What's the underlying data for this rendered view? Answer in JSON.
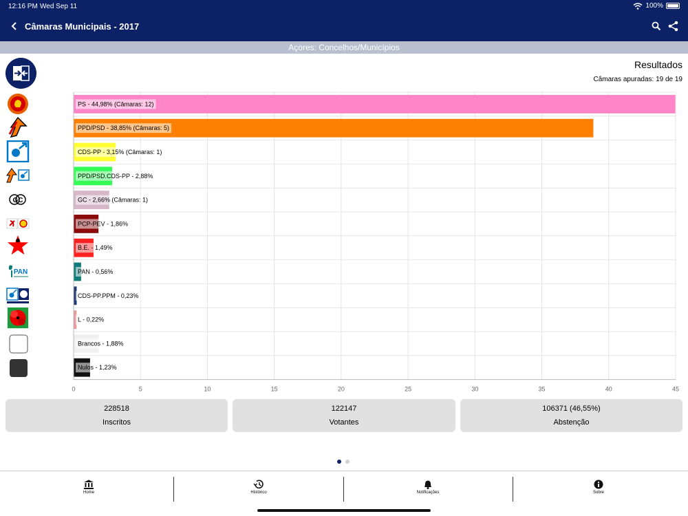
{
  "status_bar": {
    "time": "12:16 PM",
    "date": "Wed Sep 11",
    "battery": "100%"
  },
  "header": {
    "title": "Câmaras Municipais - 2017",
    "back_icon": "chevron-left-icon",
    "search_icon": "search-icon",
    "share_icon": "share-icon"
  },
  "subtitle": "Açores: Concelhos/Municípios",
  "results": {
    "title": "Resultados",
    "count": "Câmaras apuradas: 19 de 19"
  },
  "colors": {
    "brand": "#0d2266",
    "subtitle_bar": "#b9bfcf",
    "card": "#e0e0e0"
  },
  "logos": [
    {
      "name": "ps-logo"
    },
    {
      "name": "ppd-psd-logo"
    },
    {
      "name": "cds-pp-logo"
    },
    {
      "name": "ppd-psd-cds-pp-logo"
    },
    {
      "name": "gc-logo",
      "text": "GC"
    },
    {
      "name": "pcp-pev-logo"
    },
    {
      "name": "be-logo"
    },
    {
      "name": "pan-logo",
      "text": "PAN"
    },
    {
      "name": "cds-pp-ppm-logo"
    },
    {
      "name": "livre-logo"
    },
    {
      "name": "brancos-logo"
    },
    {
      "name": "nulos-logo"
    }
  ],
  "chart_data": {
    "type": "bar",
    "orientation": "horizontal",
    "categories": [
      "PS",
      "PPD/PSD",
      "CDS-PP",
      "PPD/PSD.CDS-PP",
      "GC",
      "PCP-PEV",
      "B.E.",
      "PAN",
      "CDS-PP.PPM",
      "L",
      "Brancos",
      "Nulos"
    ],
    "values": [
      44.98,
      38.85,
      3.15,
      2.88,
      2.66,
      1.86,
      1.49,
      0.56,
      0.23,
      0.22,
      1.88,
      1.23
    ],
    "labels": [
      "PS - 44,98% (Câmaras: 12)",
      "PPD/PSD - 38,85% (Câmaras: 5)",
      "CDS-PP - 3,15% (Câmaras: 1)",
      "PPD/PSD.CDS-PP - 2,88%",
      "GC - 2,66% (Câmaras: 1)",
      "PCP-PEV - 1,86%",
      "B.E. - 1,49%",
      "PAN - 0,56%",
      "CDS-PP.PPM - 0,23%",
      "L - 0,22%",
      "Brancos - 1,88%",
      "Nulos - 1,23%"
    ],
    "colors": [
      "#ff85c8",
      "#ff8000",
      "#ffff33",
      "#33ff55",
      "#d5b7c8",
      "#8b0a0a",
      "#ff2020",
      "#0e7d7a",
      "#1f3a6e",
      "#e89a9a",
      "#f0f0f0",
      "#111111"
    ],
    "xlim": [
      0,
      45
    ],
    "xticks": [
      0,
      5,
      10,
      15,
      20,
      25,
      30,
      35,
      40,
      45
    ],
    "grid": true
  },
  "stats": [
    {
      "value": "228518",
      "label": "Inscritos"
    },
    {
      "value": "122147",
      "label": "Votantes"
    },
    {
      "value": "106371 (46,55%)",
      "label": "Abstenção"
    }
  ],
  "tabs": [
    {
      "label": "Home",
      "icon": "bank-icon"
    },
    {
      "label": "Histórico",
      "icon": "history-icon"
    },
    {
      "label": "Notificações",
      "icon": "bell-icon"
    },
    {
      "label": "Sobre",
      "icon": "info-icon"
    }
  ]
}
